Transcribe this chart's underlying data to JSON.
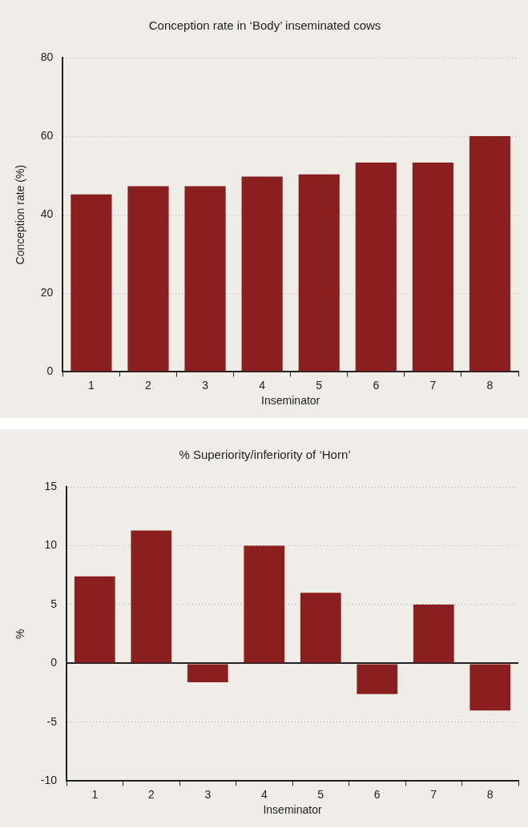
{
  "chart_data": [
    {
      "type": "bar",
      "title": "Conception rate in ‘Body’ inseminated cows",
      "xlabel": "Inseminator",
      "ylabel": "Conception rate (%)",
      "categories": [
        "1",
        "2",
        "3",
        "4",
        "5",
        "6",
        "7",
        "8"
      ],
      "values": [
        45.2,
        47.3,
        47.3,
        49.7,
        50.3,
        53.3,
        53.3,
        60
      ],
      "color": "#8b1f1f",
      "ylim": [
        0,
        80
      ],
      "yticks": [
        0,
        20,
        40,
        60,
        80
      ],
      "grid": "y",
      "legend": false
    },
    {
      "type": "bar",
      "title": "% Superiority/inferiority of ‘Horn’",
      "xlabel": "Inseminator",
      "ylabel": "%",
      "categories": [
        "1",
        "2",
        "3",
        "4",
        "5",
        "6",
        "7",
        "8"
      ],
      "values": [
        7.4,
        11.3,
        -1.6,
        10,
        6,
        -2.6,
        5,
        -4
      ],
      "color": "#8b1f1f",
      "ylim": [
        -10,
        15
      ],
      "yticks": [
        -10,
        -5,
        0,
        5,
        10,
        15
      ],
      "grid": "y",
      "legend": false
    }
  ]
}
